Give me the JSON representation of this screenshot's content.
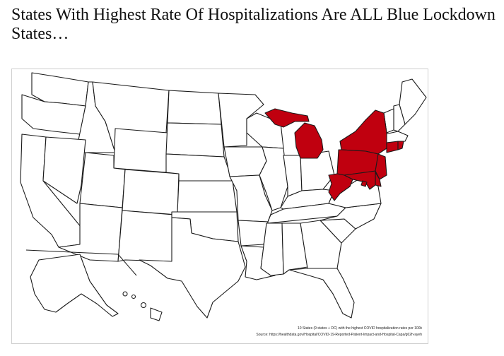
{
  "headline": "States With Highest Rate Of Hospitalizations Are ALL Blue Lockdown States…",
  "figure": {
    "caption_line1": "10 States (9 states + DC) with the highest COVID hospitalization rates per 100k",
    "caption_line2": "Source: https://healthdata.gov/Hospital/COVID-19-Reported-Patient-Impact-and-Hospital-Capa/g62h-syeh"
  },
  "map": {
    "highlight_color": "#c0000f",
    "outline_color": "#1a1a1a",
    "fill_color": "#ffffff",
    "highlighted_regions": [
      "Michigan",
      "New York",
      "Pennsylvania",
      "New Jersey",
      "Delaware",
      "Maryland",
      "District of Columbia",
      "West Virginia",
      "Connecticut",
      "Rhode Island"
    ]
  }
}
